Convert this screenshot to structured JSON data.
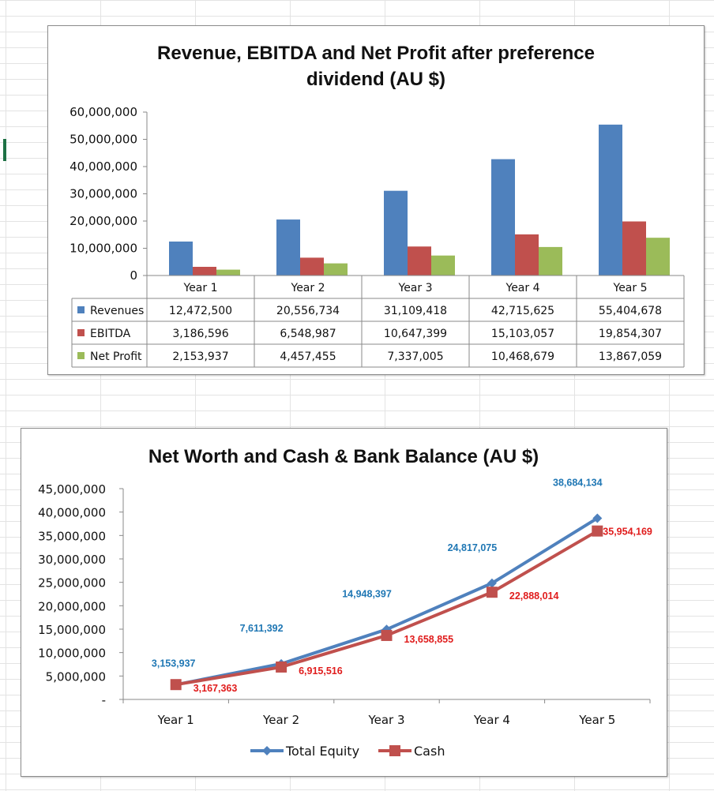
{
  "chart_data": [
    {
      "type": "bar",
      "title": "Revenue, EBITDA and Net Profit after preference dividend (AU $)",
      "title_lines": [
        "Revenue, EBITDA and Net Profit after preference",
        "dividend (AU $)"
      ],
      "categories": [
        "Year 1",
        "Year 2",
        "Year 3",
        "Year 4",
        "Year 5"
      ],
      "ylim": [
        0,
        60000000
      ],
      "yticks": [
        0,
        10000000,
        20000000,
        30000000,
        40000000,
        50000000,
        60000000
      ],
      "ytick_labels": [
        "0",
        "10,000,000",
        "20,000,000",
        "30,000,000",
        "40,000,000",
        "50,000,000",
        "60,000,000"
      ],
      "grid": false,
      "legend": "data-table",
      "series": [
        {
          "name": "Revenues",
          "color": "#4f81bd",
          "values": [
            12472500,
            20556734,
            31109418,
            42715625,
            55404678
          ],
          "labels": [
            "12,472,500",
            "20,556,734",
            "31,109,418",
            "42,715,625",
            "55,404,678"
          ]
        },
        {
          "name": "EBITDA",
          "color": "#c0504d",
          "values": [
            3186596,
            6548987,
            10647399,
            15103057,
            19854307
          ],
          "labels": [
            "3,186,596",
            "6,548,987",
            "10,647,399",
            "15,103,057",
            "19,854,307"
          ]
        },
        {
          "name": "Net Profit",
          "color": "#9bbb59",
          "values": [
            2153937,
            4457455,
            7337005,
            10468679,
            13867059
          ],
          "labels": [
            "2,153,937",
            "4,457,455",
            "7,337,005",
            "10,468,679",
            "13,867,059"
          ]
        }
      ]
    },
    {
      "type": "line",
      "title": "Net Worth and Cash & Bank Balance (AU $)",
      "categories": [
        "Year 1",
        "Year 2",
        "Year 3",
        "Year 4",
        "Year 5"
      ],
      "ylim": [
        0,
        45000000
      ],
      "yticks": [
        0,
        5000000,
        10000000,
        15000000,
        20000000,
        25000000,
        30000000,
        35000000,
        40000000,
        45000000
      ],
      "ytick_labels": [
        "-",
        "5,000,000",
        "10,000,000",
        "15,000,000",
        "20,000,000",
        "25,000,000",
        "30,000,000",
        "35,000,000",
        "40,000,000",
        "45,000,000"
      ],
      "grid": false,
      "legend": "bottom",
      "series": [
        {
          "name": "Total Equity",
          "color": "#4f81bd",
          "marker": "diamond",
          "label_color": "#1f77b4",
          "values": [
            3153937,
            7611392,
            14948397,
            24817075,
            38684134
          ],
          "labels": [
            "3,153,937",
            "7,611,392",
            "14,948,397",
            "24,817,075",
            "38,684,134"
          ]
        },
        {
          "name": "Cash",
          "color": "#c0504d",
          "marker": "square",
          "label_color": "#e01c1c",
          "values": [
            3167363,
            6915516,
            13658855,
            22888014,
            35954169
          ],
          "labels": [
            "3,167,363",
            "6,915,516",
            "13,658,855",
            "22,888,014",
            "35,954,169"
          ]
        }
      ]
    }
  ]
}
